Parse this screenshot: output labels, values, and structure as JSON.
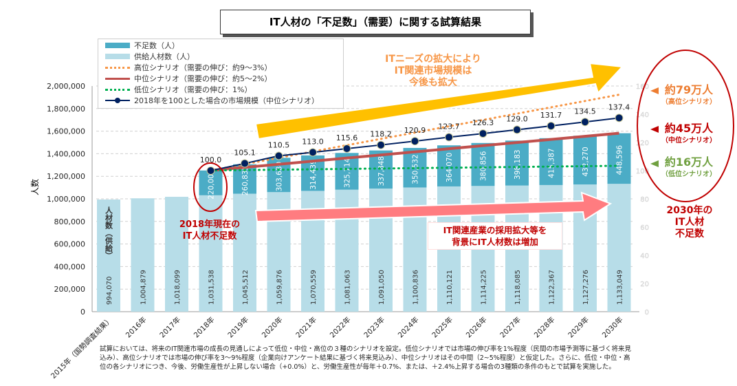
{
  "title": "IT人材の「不足数」（需要）に関する試算結果",
  "legend": [
    "不足数（人）",
    "供給人材数（人）",
    "高位シナリオ（需要の伸び：約9〜3%）",
    "中位シナリオ（需要の伸び：約5〜2%）",
    "低位シナリオ（需要の伸び：1%）",
    "2018年を100とした場合の市場規模（中位シナリオ）"
  ],
  "colors": {
    "shortage": "#4bacc6",
    "supply": "#b7dde8",
    "high": "#f79646",
    "mid": "#c0504d",
    "low": "#00b050",
    "market": "#002060"
  },
  "chart_data": {
    "type": "bar",
    "ylabel": "人数",
    "ylim": [
      0,
      2000000
    ],
    "yticks": [
      "0",
      "200,000",
      "400,000",
      "600,000",
      "800,000",
      "1,000,000",
      "1,200,000",
      "1,400,000",
      "1,600,000",
      "1,800,000",
      "2,000,000"
    ],
    "y2ticks": [
      "0",
      "20",
      "40",
      "60",
      "80",
      "100",
      "120",
      "140",
      "160"
    ],
    "categories": [
      "2015年（国勢調査結果）",
      "2016年",
      "2017年",
      "2018年",
      "2019年",
      "2020年",
      "2021年",
      "2022年",
      "2023年",
      "2024年",
      "2025年",
      "2026年",
      "2027年",
      "2028年",
      "2029年",
      "2030年"
    ],
    "supply": [
      994070,
      1004879,
      1018099,
      1031538,
      1045512,
      1059876,
      1070559,
      1081063,
      1091050,
      1100836,
      1110121,
      1114225,
      1118085,
      1122367,
      1127276,
      1133049
    ],
    "supply_labels": [
      "994,070",
      "1,004,879",
      "1,018,099",
      "1,031,538",
      "1,045,512",
      "1,059,876",
      "1,070,559",
      "1,081,063",
      "1,091,050",
      "1,100,836",
      "1,110,121",
      "1,114,225",
      "1,118,085",
      "1,122,367",
      "1,127,276",
      "1,133,049"
    ],
    "shortage": [
      null,
      null,
      null,
      220000,
      260835,
      303680,
      314439,
      325714,
      337848,
      350532,
      364070,
      380856,
      398183,
      415387,
      432270,
      448596
    ],
    "shortage_labels": [
      "",
      "",
      "",
      "220,000",
      "260,835",
      "303,680",
      "314,439",
      "325,714",
      "337,848",
      "350,532",
      "364,070",
      "380,856",
      "398,183",
      "415,387",
      "432,270",
      "448,596"
    ],
    "market_index": [
      null,
      null,
      null,
      100.0,
      105.1,
      110.5,
      113.0,
      115.6,
      118.2,
      120.9,
      123.7,
      126.3,
      129.0,
      131.7,
      134.5,
      137.4
    ],
    "market_labels": [
      "",
      "",
      "",
      "100.0",
      "105.1",
      "110.5",
      "113.0",
      "115.6",
      "118.2",
      "120.9",
      "123.7",
      "126.3",
      "129.0",
      "131.7",
      "134.5",
      "137.4"
    ],
    "high_2030_shortage": 790000,
    "low_2030_shortage": 160000,
    "bar_inner_label": "人材数（供給）"
  },
  "annotations": {
    "market_growth": [
      "ITニーズの拡大により",
      "IT関連市場規模は",
      "今後も拡大"
    ],
    "workforce_growth": [
      "IT関連産業の採用拡大等を",
      "背景にIT人材数は増加"
    ],
    "current_shortage": [
      "2018年現在の",
      "IT人材不足数"
    ],
    "high": [
      "約79万人",
      "（高位シナリオ）"
    ],
    "mid": [
      "約45万人",
      "（中位シナリオ）"
    ],
    "low": [
      "約16万人",
      "（低位シナリオ）"
    ],
    "y2030": [
      "2030年の",
      "IT人材",
      "不足数"
    ]
  },
  "footnote": "試算においては、将来のIT関連市場の成長の見通しによって低位・中位・高位の３種のシナリオを設定。低位シナリオでは市場の伸び率を1%程度（民間の市場予測等に基づく将来見込み）、高位シナリオでは市場の伸び率を3～9%程度（企業向けアンケート結果に基づく将来見込み）、中位シナリオはその中間（2~5%程度）と仮定した。さらに、低位・中位・高位の各シナリオにつき、今後、労働生産性が上昇しない場合（+0.0%）と、労働生産性が毎年＋0.7%、または、＋2.4%上昇する場合の3種類の条件のもとで試算を実施した。"
}
